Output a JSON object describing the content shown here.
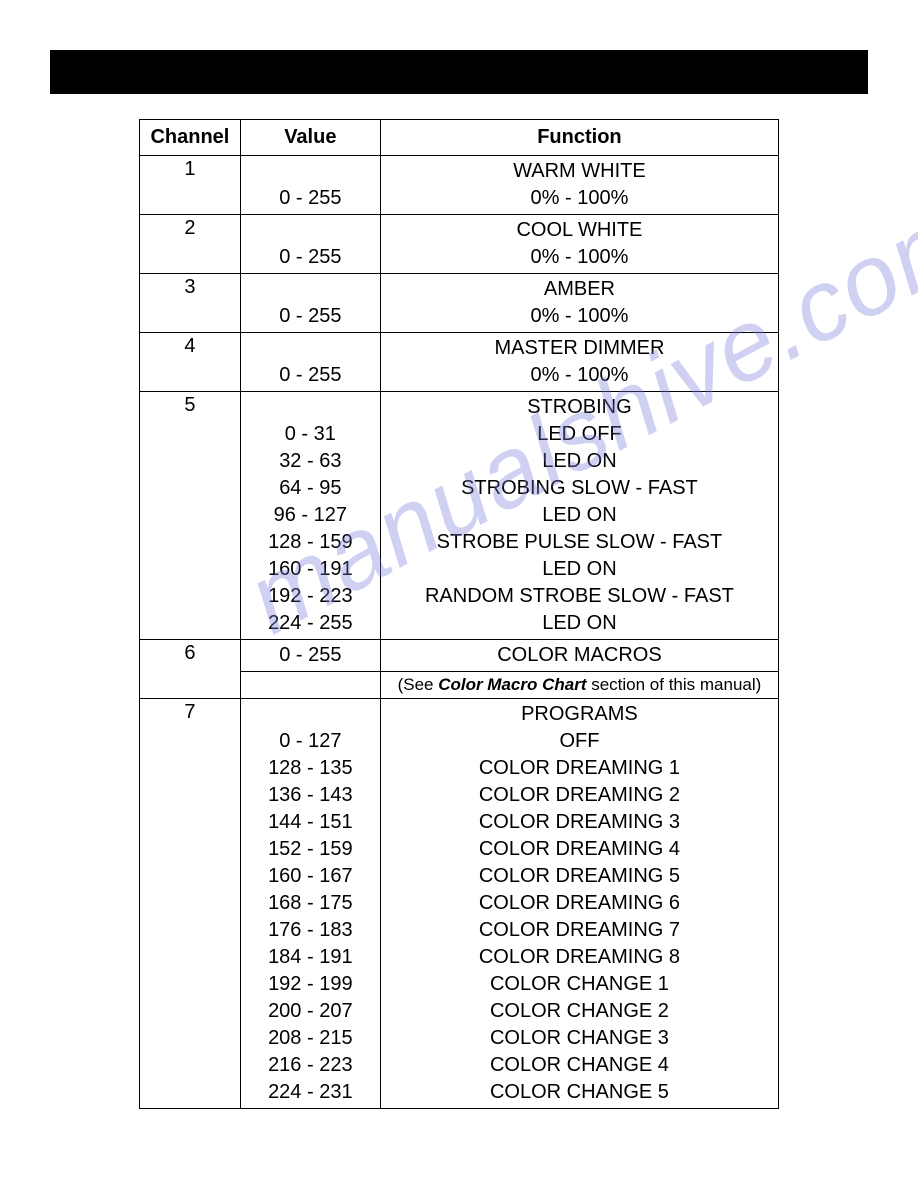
{
  "watermark_text": "manualshive.com",
  "table": {
    "headers": {
      "channel": "Channel",
      "value": "Value",
      "function": "Function"
    },
    "rows": [
      {
        "channel": "1",
        "value_lines": [
          "",
          "0 - 255"
        ],
        "function_lines": [
          "WARM WHITE",
          "0% - 100%"
        ]
      },
      {
        "channel": "2",
        "value_lines": [
          "",
          "0 - 255"
        ],
        "function_lines": [
          "COOL WHITE",
          "0% - 100%"
        ]
      },
      {
        "channel": "3",
        "value_lines": [
          "",
          "0 - 255"
        ],
        "function_lines": [
          "AMBER",
          "0% - 100%"
        ]
      },
      {
        "channel": "4",
        "value_lines": [
          "",
          "0 - 255"
        ],
        "function_lines": [
          "MASTER DIMMER",
          "0% - 100%"
        ]
      },
      {
        "channel": "5",
        "value_lines": [
          "",
          "0 - 31",
          "32 - 63",
          "64 - 95",
          "96 - 127",
          "128 - 159",
          "160 - 191",
          "192 - 223",
          "224 - 255"
        ],
        "function_lines": [
          "STROBING",
          "LED OFF",
          "LED ON",
          "STROBING SLOW - FAST",
          "LED ON",
          "STROBE PULSE SLOW - FAST",
          "LED ON",
          "RANDOM STROBE SLOW - FAST",
          "LED ON"
        ]
      },
      {
        "channel": "6",
        "value_lines": [
          "0 - 255"
        ],
        "function_lines": [
          "COLOR MACROS"
        ],
        "note_prefix": "(See ",
        "note_bold": "Color Macro Chart",
        "note_suffix": " section of this manual)"
      },
      {
        "channel": "7",
        "value_lines": [
          "",
          "0 - 127",
          "128 - 135",
          "136 - 143",
          "144 - 151",
          "152 - 159",
          "160 - 167",
          "168 - 175",
          "176 - 183",
          "184 - 191",
          "192 - 199",
          "200 - 207",
          "208 - 215",
          "216 - 223",
          "224 - 231"
        ],
        "function_lines": [
          "PROGRAMS",
          "OFF",
          "COLOR DREAMING 1",
          "COLOR DREAMING 2",
          "COLOR DREAMING 3",
          "COLOR DREAMING 4",
          "COLOR DREAMING 5",
          "COLOR DREAMING 6",
          "COLOR DREAMING 7",
          "COLOR DREAMING 8",
          "COLOR CHANGE 1",
          "COLOR CHANGE 2",
          "COLOR CHANGE 3",
          "COLOR CHANGE 4",
          "COLOR CHANGE 5"
        ]
      }
    ]
  }
}
